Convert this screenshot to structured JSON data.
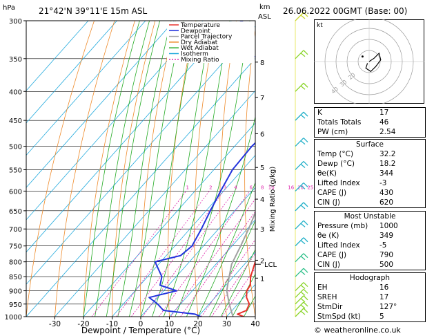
{
  "header": {
    "hpa_label": "hPa",
    "location": "21°42'N  39°11'E  15m  ASL",
    "km_label": "km",
    "asl_label": "ASL",
    "datetime": "26.06.2022  00GMT  (Base: 00)"
  },
  "chart_data": {
    "type": "line",
    "title": "21°42'N  39°11'E  15m  ASL",
    "xlabel": "Dewpoint / Temperature (°C)",
    "ylabel": "hPa",
    "y_scale": "log",
    "ylim": [
      1000,
      300
    ],
    "xlim_at_surface": [
      -40,
      40
    ],
    "skew": "skew-T",
    "pressure_ticks": [
      300,
      350,
      400,
      450,
      500,
      550,
      600,
      650,
      700,
      750,
      800,
      850,
      900,
      950,
      1000
    ],
    "temperature_ticks": [
      -30,
      -20,
      -10,
      0,
      10,
      20,
      30,
      40
    ],
    "km_ticks": [
      {
        "p": 855,
        "label": "1"
      },
      {
        "p": 795,
        "label": "2"
      },
      {
        "p": 700,
        "label": "3"
      },
      {
        "p": 620,
        "label": "4"
      },
      {
        "p": 545,
        "label": "5"
      },
      {
        "p": 475,
        "label": "6"
      },
      {
        "p": 410,
        "label": "7"
      },
      {
        "p": 355,
        "label": "8"
      }
    ],
    "mixing_ratio_label": "Mixing Ratio (g/kg)",
    "mixing_ratio_values": [
      "1",
      "2",
      "3",
      "4",
      "6",
      "8",
      "10",
      "16",
      "20",
      "25"
    ],
    "lcl_label": "LCL",
    "lcl_pressure": 808,
    "legend": [
      {
        "name": "Temperature",
        "color": "#e8302a"
      },
      {
        "name": "Dewpoint",
        "color": "#2233dd"
      },
      {
        "name": "Parcel Trajectory",
        "color": "#a0a0a0"
      },
      {
        "name": "Dry Adiabat",
        "color": "#ee8a2a"
      },
      {
        "name": "Wet Adiabat",
        "color": "#22aa22"
      },
      {
        "name": "Isotherm",
        "color": "#22aadd"
      },
      {
        "name": "Mixing Ratio",
        "color": "#dd22aa"
      }
    ],
    "series": [
      {
        "name": "Temperature",
        "color": "#e8302a",
        "points": [
          [
            1000,
            36
          ],
          [
            990,
            33
          ],
          [
            975,
            35
          ],
          [
            950,
            34
          ],
          [
            925,
            31
          ],
          [
            900,
            29
          ],
          [
            880,
            28.5
          ],
          [
            850,
            26
          ],
          [
            800,
            23
          ],
          [
            750,
            19.5
          ],
          [
            700,
            15
          ],
          [
            650,
            11
          ],
          [
            600,
            6.5
          ],
          [
            550,
            1.5
          ],
          [
            500,
            -3.5
          ],
          [
            450,
            -9
          ],
          [
            400,
            -16
          ],
          [
            390,
            -16
          ],
          [
            380,
            -18
          ],
          [
            370,
            -19
          ],
          [
            360,
            -21
          ],
          [
            350,
            -23
          ],
          [
            340,
            -25
          ],
          [
            320,
            -29.5
          ],
          [
            300,
            -33.5
          ]
        ]
      },
      {
        "name": "Dewpoint",
        "color": "#2233dd",
        "points": [
          [
            1000,
            21
          ],
          [
            990,
            18.2
          ],
          [
            975,
            6
          ],
          [
            950,
            2
          ],
          [
            925,
            -3
          ],
          [
            900,
            4.5
          ],
          [
            880,
            -3
          ],
          [
            850,
            -5
          ],
          [
            800,
            -12
          ],
          [
            780,
            -5
          ],
          [
            750,
            -4
          ],
          [
            700,
            -6
          ],
          [
            650,
            -8.5
          ],
          [
            600,
            -11
          ],
          [
            550,
            -13.5
          ],
          [
            500,
            -14
          ],
          [
            450,
            -12.5
          ],
          [
            420,
            -15.5
          ],
          [
            400,
            -19
          ],
          [
            395,
            -17
          ],
          [
            385,
            -19
          ],
          [
            380,
            -27
          ],
          [
            370,
            -18
          ],
          [
            365,
            -18
          ],
          [
            355,
            -33
          ],
          [
            340,
            -48
          ],
          [
            320,
            -60
          ],
          [
            310,
            -60
          ],
          [
            300,
            -56
          ]
        ]
      },
      {
        "name": "Parcel Trajectory",
        "color": "#a0a0a0",
        "points": [
          [
            1000,
            32.2
          ],
          [
            950,
            27
          ],
          [
            900,
            22
          ],
          [
            850,
            18.5
          ],
          [
            808,
            15.5
          ],
          [
            750,
            13
          ],
          [
            700,
            10.5
          ],
          [
            650,
            7.5
          ],
          [
            600,
            4.5
          ],
          [
            550,
            0.5
          ],
          [
            500,
            -4
          ],
          [
            450,
            -9
          ],
          [
            400,
            -14.5
          ],
          [
            350,
            -21
          ],
          [
            300,
            -29
          ]
        ]
      }
    ]
  },
  "hodograph": {
    "label": "kt",
    "ring_labels": [
      "20",
      "30",
      "40"
    ],
    "trace_kt": [
      [
        0,
        0
      ],
      [
        3,
        -2
      ],
      [
        6,
        -5
      ],
      [
        7,
        -1
      ],
      [
        4,
        3
      ],
      [
        1,
        6
      ],
      [
        -2,
        4
      ],
      [
        -1,
        1
      ]
    ],
    "storm_motion": {
      "dir_deg": 127,
      "speed_kt": 5
    }
  },
  "wind_barbs": [
    {
      "p": 1000,
      "color": "#8ad42a"
    },
    {
      "p": 975,
      "color": "#8ad42a"
    },
    {
      "p": 950,
      "color": "#8ad42a"
    },
    {
      "p": 925,
      "color": "#8ad42a"
    },
    {
      "p": 900,
      "color": "#8ad42a"
    },
    {
      "p": 850,
      "color": "#2bbf88"
    },
    {
      "p": 800,
      "color": "#2bbf88"
    },
    {
      "p": 750,
      "color": "#22b0c8"
    },
    {
      "p": 700,
      "color": "#22b0c8"
    },
    {
      "p": 650,
      "color": "#22b0c8"
    },
    {
      "p": 600,
      "color": "#22b0c8"
    },
    {
      "p": 550,
      "color": "#22b0c8"
    },
    {
      "p": 500,
      "color": "#22b0c8"
    },
    {
      "p": 450,
      "color": "#22b0c8"
    },
    {
      "p": 400,
      "color": "#8ad42a"
    },
    {
      "p": 350,
      "color": "#8ad42a"
    },
    {
      "p": 300,
      "color": "#c8d42a"
    }
  ],
  "indices": {
    "k_label": "K",
    "k_value": "17",
    "tt_label": "Totals Totals",
    "tt_value": "46",
    "pw_label": "PW (cm)",
    "pw_value": "2.54"
  },
  "surface": {
    "title": "Surface",
    "temp_label": "Temp (°C)",
    "temp_value": "32.2",
    "dewp_label": "Dewp (°C)",
    "dewp_value": "18.2",
    "thetae_label": "θe(K)",
    "thetae_value": "344",
    "li_label": "Lifted Index",
    "li_value": "-3",
    "cape_label": "CAPE (J)",
    "cape_value": "430",
    "cin_label": "CIN (J)",
    "cin_value": "620"
  },
  "most_unstable": {
    "title": "Most Unstable",
    "pres_label": "Pressure (mb)",
    "pres_value": "1000",
    "thetae_label": "θe (K)",
    "thetae_value": "349",
    "li_label": "Lifted Index",
    "li_value": "-5",
    "cape_label": "CAPE (J)",
    "cape_value": "790",
    "cin_label": "CIN (J)",
    "cin_value": "500"
  },
  "hodo_indices": {
    "title": "Hodograph",
    "eh_label": "EH",
    "eh_value": "16",
    "sreh_label": "SREH",
    "sreh_value": "17",
    "stmdir_label": "StmDir",
    "stmdir_value": "127°",
    "stmspd_label": "StmSpd (kt)",
    "stmspd_value": "5"
  },
  "footer": {
    "credit": "© weatheronline.co.uk"
  }
}
